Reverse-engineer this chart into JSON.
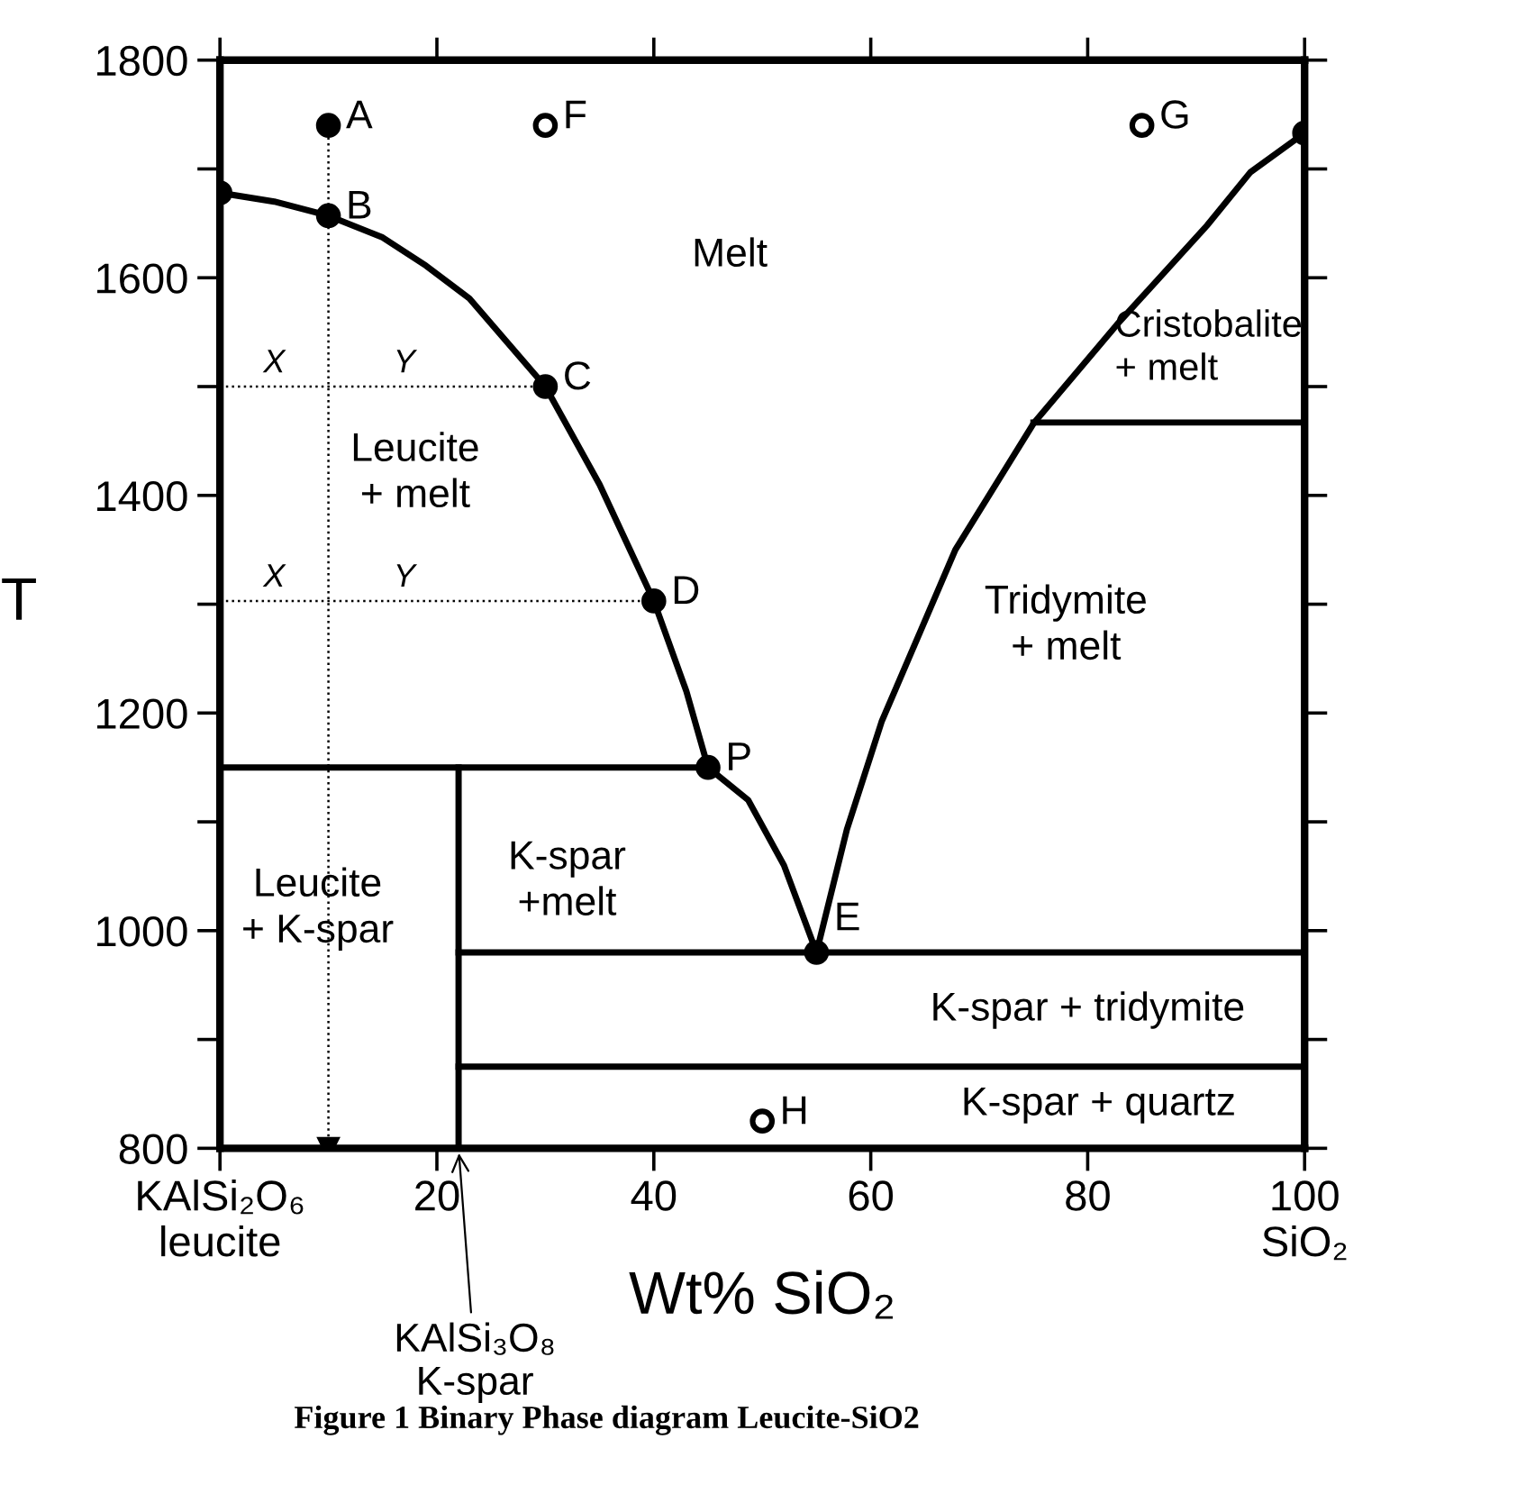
{
  "chart_data": {
    "type": "line",
    "xlabel": "Wt% SiO₂",
    "ylabel": "T",
    "xlim": [
      0,
      100
    ],
    "ylim": [
      800,
      1800
    ],
    "xticks": [
      {
        "value": 0,
        "label": "KAlSi₂O₆\nleucite"
      },
      20,
      40,
      60,
      80,
      {
        "value": 100,
        "label": "100\nSiO₂"
      }
    ],
    "yticks": [
      800,
      {
        "value": 900,
        "label": null
      },
      1000,
      {
        "value": 1100,
        "label": null
      },
      1200,
      {
        "value": 1300,
        "label": null
      },
      1400,
      {
        "value": 1500,
        "label": null
      },
      1600,
      {
        "value": 1700,
        "label": null
      },
      1800
    ],
    "grid": false,
    "legend": false,
    "series": [
      {
        "type": "line",
        "color": "#000000",
        "line_style": "solid",
        "x": [
          0,
          5,
          10,
          15,
          19,
          23,
          30,
          35,
          40,
          43,
          45
        ],
        "values": [
          1678,
          1670,
          1657,
          1637,
          1611,
          1581,
          1500,
          1410,
          1303,
          1220,
          1150
        ]
      },
      {
        "type": "line",
        "color": "#000000",
        "line_style": "solid",
        "x": [
          45,
          48.7,
          52,
          55
        ],
        "values": [
          1150,
          1120,
          1060,
          980
        ]
      },
      {
        "type": "line",
        "color": "#000000",
        "line_style": "solid",
        "x": [
          55,
          57.8,
          61,
          67.8,
          75,
          82.7,
          91,
          95,
          100
        ],
        "values": [
          980,
          1093,
          1192,
          1350,
          1466,
          1557,
          1648,
          1697,
          1733
        ]
      },
      {
        "type": "line",
        "color": "#000000",
        "line_style": "solid",
        "x": [
          0,
          45
        ],
        "values": [
          1150,
          1150
        ]
      },
      {
        "type": "line",
        "color": "#000000",
        "line_style": "solid",
        "x": [
          22,
          100
        ],
        "values": [
          980,
          980
        ]
      },
      {
        "type": "line",
        "color": "#000000",
        "line_style": "solid",
        "x": [
          22,
          100
        ],
        "values": [
          875,
          875
        ]
      },
      {
        "type": "line",
        "color": "#000000",
        "line_style": "solid",
        "x": [
          75,
          100
        ],
        "values": [
          1467,
          1467
        ]
      },
      {
        "type": "line",
        "color": "#000000",
        "line_style": "solid",
        "x": [
          22,
          22
        ],
        "values": [
          800,
          1150
        ]
      },
      {
        "type": "line",
        "color": "#000000",
        "line_style": "dotted",
        "marker": "triangle",
        "x": [
          10,
          10
        ],
        "values": [
          1740,
          800
        ]
      },
      {
        "type": "line",
        "color": "#000000",
        "line_style": "dotted",
        "x": [
          0,
          30
        ],
        "values": [
          1500,
          1500
        ]
      },
      {
        "type": "line",
        "color": "#000000",
        "line_style": "dotted",
        "x": [
          0,
          40
        ],
        "values": [
          1303,
          1303
        ]
      },
      {
        "type": "scatter",
        "color": "#000000",
        "marker": "circle",
        "x": [
          0,
          10,
          10,
          30,
          40,
          45,
          55,
          100
        ],
        "values": [
          1678,
          1740,
          1657,
          1500,
          1303,
          1150,
          980,
          1733
        ]
      },
      {
        "type": "scatter",
        "color": "#ffffff",
        "marker": "circle",
        "x": [
          30,
          85,
          50
        ],
        "values": [
          1740,
          1740,
          825
        ]
      }
    ],
    "annotations": [
      {
        "text": "A",
        "x": 10,
        "y": 1740
      },
      {
        "text": "B",
        "x": 10,
        "y": 1657
      },
      {
        "text": "C",
        "x": 30,
        "y": 1500
      },
      {
        "text": "D",
        "x": 40,
        "y": 1303
      },
      {
        "text": "P",
        "x": 45,
        "y": 1150
      },
      {
        "text": "E",
        "x": 55,
        "y": 980
      },
      {
        "text": "F",
        "x": 30,
        "y": 1740
      },
      {
        "text": "G",
        "x": 85,
        "y": 1740
      },
      {
        "text": "H",
        "x": 50,
        "y": 825
      },
      {
        "text": "X",
        "x": 5,
        "y": 1500
      },
      {
        "text": "Y",
        "x": 17,
        "y": 1500
      },
      {
        "text": "X",
        "x": 5,
        "y": 1303
      },
      {
        "text": "Y",
        "x": 17,
        "y": 1303
      },
      "Melt",
      "Leucite\n+ melt",
      "Cristobalite\n+ melt",
      "Tridymite\n+ melt",
      "K-spar\n+melt",
      "Leucite\n+ K-spar",
      "K-spar + tridymite",
      "K-spar + quartz",
      {
        "text": "KAlSi₃O₈\nK-spar",
        "x": 22,
        "y": 800
      },
      "Figure 1 Binary Phase diagram Leucite-SiO2"
    ]
  }
}
